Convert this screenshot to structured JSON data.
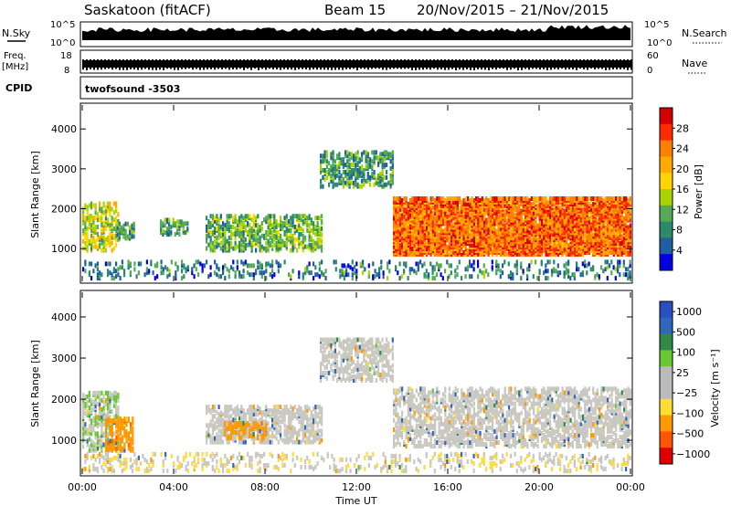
{
  "header": {
    "station": "Saskatoon (fitACF)",
    "beam": "Beam 15",
    "dates": "20/Nov/2015 – 21/Nov/2015"
  },
  "top_panels": {
    "nsky_label": "N.Sky",
    "nsky_ticks": [
      "10^5",
      "10^0"
    ],
    "nsearch_label": "N.Search",
    "nsearch_ticks": [
      "10^5",
      "10^0"
    ],
    "freq_label_1": "Freq.",
    "freq_label_2": "[MHz]",
    "freq_ticks": [
      "18",
      "8"
    ],
    "nave_label": "Nave",
    "nave_ticks": [
      "60",
      "0"
    ],
    "cpid_label": "CPID",
    "cpid_value": "twofsound -3503"
  },
  "power_colorbar": {
    "label": "Power [dB]",
    "ticks": [
      "28",
      "24",
      "20",
      "16",
      "12",
      "8",
      "4"
    ],
    "colors": [
      "#d40000",
      "#ff2a00",
      "#ff7f00",
      "#ffaa00",
      "#ffd400",
      "#aad400",
      "#55aa55",
      "#2a8a6a",
      "#1f5fa0",
      "#0000e0"
    ]
  },
  "velocity_colorbar": {
    "label": "Velocity [m s⁻¹]",
    "ticks": [
      "1000",
      "500",
      "100",
      "25",
      "−25",
      "−100",
      "−500",
      "−1000"
    ],
    "colors": [
      "#2a4fc0",
      "#3366bb",
      "#2f8a4a",
      "#66c933",
      "#bbbbbb",
      "#bbbbbb",
      "#ffdd33",
      "#ff9900",
      "#ff5500",
      "#e00000"
    ]
  },
  "axes": {
    "ylabel": "Slant Range [km]",
    "yticks": [
      "4000",
      "3000",
      "2000",
      "1000"
    ],
    "xlabel": "Time UT",
    "xticks": [
      "00:00",
      "04:00",
      "08:00",
      "12:00",
      "16:00",
      "20:00",
      "00:00"
    ]
  },
  "chart_data": [
    {
      "type": "heatmap",
      "title": "Saskatoon (fitACF) Beam 15 20/Nov/2015 – 21/Nov/2015",
      "xlabel": "Time UT",
      "ylabel": "Slant Range [km]",
      "xlim": [
        0,
        24
      ],
      "ylim": [
        180,
        4600
      ],
      "colorbar": "Power [dB]",
      "clim": [
        0,
        30
      ],
      "regions": [
        {
          "t": [
            0.0,
            1.6
          ],
          "r": [
            900,
            2100
          ],
          "value": 14
        },
        {
          "t": [
            1.5,
            2.3
          ],
          "r": [
            1200,
            1600
          ],
          "value": 9
        },
        {
          "t": [
            3.4,
            4.6
          ],
          "r": [
            1300,
            1700
          ],
          "value": 8
        },
        {
          "t": [
            5.4,
            10.5
          ],
          "r": [
            900,
            1800
          ],
          "value": 10
        },
        {
          "t": [
            10.4,
            13.6
          ],
          "r": [
            2500,
            3400
          ],
          "value": 8
        },
        {
          "t": [
            13.6,
            24.0
          ],
          "r": [
            800,
            2200
          ],
          "value": 24
        },
        {
          "t": [
            0.0,
            24.0
          ],
          "r": [
            200,
            650
          ],
          "value": 6
        }
      ]
    },
    {
      "type": "heatmap",
      "xlabel": "Time UT",
      "ylabel": "Slant Range [km]",
      "xlim": [
        0,
        24
      ],
      "ylim": [
        180,
        4600
      ],
      "colorbar": "Velocity [m s⁻¹]",
      "clim": [
        -1000,
        1000
      ],
      "regions": [
        {
          "t": [
            0.0,
            1.6
          ],
          "r": [
            700,
            2100
          ],
          "value": 20
        },
        {
          "t": [
            1.0,
            2.2
          ],
          "r": [
            700,
            1500
          ],
          "value": -150
        },
        {
          "t": [
            5.4,
            10.5
          ],
          "r": [
            900,
            1800
          ],
          "value": 0
        },
        {
          "t": [
            6.2,
            8.0
          ],
          "r": [
            1000,
            1400
          ],
          "value": -200
        },
        {
          "t": [
            10.4,
            13.6
          ],
          "r": [
            2400,
            3400
          ],
          "value": 0
        },
        {
          "t": [
            13.6,
            24.0
          ],
          "r": [
            800,
            2200
          ],
          "value": 0
        },
        {
          "t": [
            0.0,
            24.0
          ],
          "r": [
            200,
            650
          ],
          "value": -20
        }
      ]
    }
  ]
}
